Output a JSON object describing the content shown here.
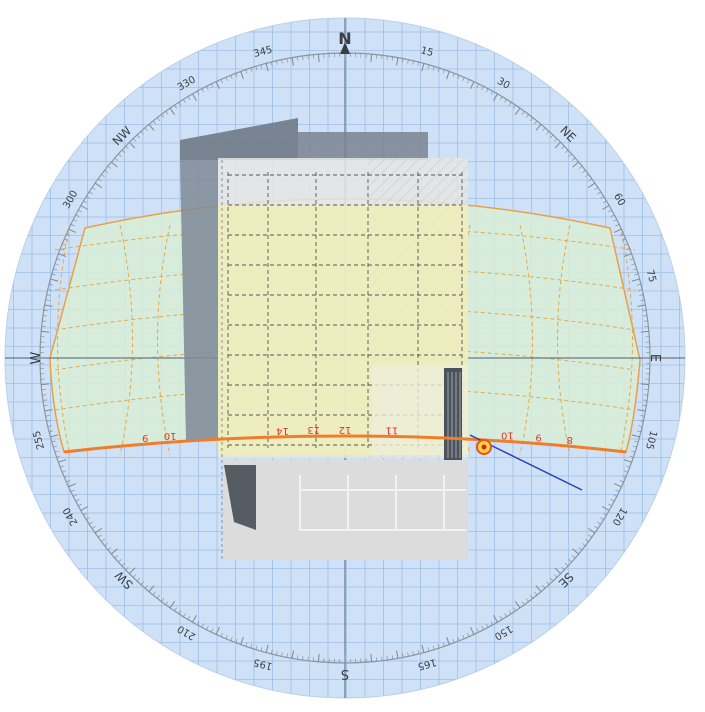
{
  "compass": {
    "cardinals": {
      "N": "N",
      "S": "S",
      "E": "E",
      "W": "W"
    },
    "intercardinals": {
      "NE": "NE",
      "SE": "SE",
      "SW": "SW",
      "NW": "NW"
    },
    "bearing_labels": [
      {
        "deg": 15,
        "text": "15"
      },
      {
        "deg": 30,
        "text": "30"
      },
      {
        "deg": 60,
        "text": "60"
      },
      {
        "deg": 75,
        "text": "75"
      },
      {
        "deg": 105,
        "text": "105"
      },
      {
        "deg": 120,
        "text": "120"
      },
      {
        "deg": 150,
        "text": "150"
      },
      {
        "deg": 165,
        "text": "165"
      },
      {
        "deg": 195,
        "text": "195"
      },
      {
        "deg": 210,
        "text": "210"
      },
      {
        "deg": 240,
        "text": "240"
      },
      {
        "deg": 255,
        "text": "255"
      },
      {
        "deg": 300,
        "text": "300"
      },
      {
        "deg": 330,
        "text": "330"
      },
      {
        "deg": 345,
        "text": "345"
      }
    ]
  },
  "sun_path": {
    "hour_labels": [
      {
        "text": "9",
        "az": 244
      },
      {
        "text": "10",
        "az": 236
      },
      {
        "text": "14",
        "az": 200
      },
      {
        "text": "13",
        "az": 190
      },
      {
        "text": "12",
        "az": 180
      },
      {
        "text": "11",
        "az": 165
      },
      {
        "text": "10",
        "az": 128
      },
      {
        "text": "9",
        "az": 118
      },
      {
        "text": "8",
        "az": 108
      }
    ],
    "sun_marker": {
      "az": 132
    }
  },
  "colors": {
    "sky": "#cfe1f7",
    "grid": "#9fbfe3",
    "sun_band": "#d8edd6",
    "sun_path": "#f07d2a",
    "hour_label": "#e0362c",
    "building_light": "#e4e4e2",
    "building_dark": "#6f7a86",
    "overlay_yellow": "#f2efb3"
  }
}
